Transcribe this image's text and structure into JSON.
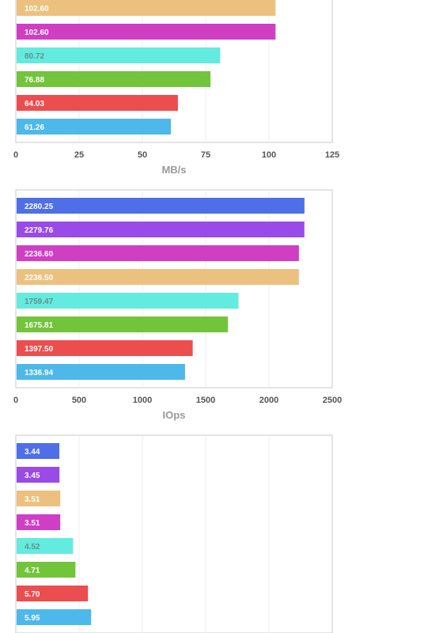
{
  "chart_data": [
    {
      "type": "bar",
      "orientation": "horizontal",
      "xlabel": "MB/s",
      "xlim": [
        0,
        125
      ],
      "xticks": [
        0,
        25,
        50,
        75,
        100,
        125
      ],
      "grid": true,
      "bars": [
        {
          "value": 102.6,
          "label": "102.60",
          "color": "#ecc17f"
        },
        {
          "value": 102.6,
          "label": "102.60",
          "color": "#d03ec4"
        },
        {
          "value": 80.72,
          "label": "80.72",
          "color": "#62ebde"
        },
        {
          "value": 76.88,
          "label": "76.88",
          "color": "#72c43b"
        },
        {
          "value": 64.03,
          "label": "64.03",
          "color": "#ec4d4f"
        },
        {
          "value": 61.26,
          "label": "61.26",
          "color": "#4db8ea"
        }
      ]
    },
    {
      "type": "bar",
      "orientation": "horizontal",
      "xlabel": "IOps",
      "xlim": [
        0,
        2500
      ],
      "xticks": [
        0,
        500,
        1000,
        1500,
        2000,
        2500
      ],
      "grid": true,
      "bars": [
        {
          "value": 2280.25,
          "label": "2280.25",
          "color": "#4f6fe8"
        },
        {
          "value": 2279.76,
          "label": "2279.76",
          "color": "#9a4ae6"
        },
        {
          "value": 2236.6,
          "label": "2236.60",
          "color": "#d03ec4"
        },
        {
          "value": 2236.5,
          "label": "2236.50",
          "color": "#ecc17f"
        },
        {
          "value": 1759.47,
          "label": "1759.47",
          "color": "#62ebde"
        },
        {
          "value": 1675.81,
          "label": "1675.81",
          "color": "#72c43b"
        },
        {
          "value": 1397.5,
          "label": "1397.50",
          "color": "#ec4d4f"
        },
        {
          "value": 1336.94,
          "label": "1336.94",
          "color": "#4db8ea"
        }
      ]
    },
    {
      "type": "bar",
      "orientation": "horizontal",
      "xlabel": "",
      "xlim": [
        0,
        25
      ],
      "grid": true,
      "bars": [
        {
          "value": 3.44,
          "label": "3.44",
          "color": "#4f6fe8"
        },
        {
          "value": 3.45,
          "label": "3.45",
          "color": "#9a4ae6"
        },
        {
          "value": 3.51,
          "label": "3.51",
          "color": "#ecc17f"
        },
        {
          "value": 3.51,
          "label": "3.51",
          "color": "#d03ec4"
        },
        {
          "value": 4.52,
          "label": "4.52",
          "color": "#62ebde"
        },
        {
          "value": 4.71,
          "label": "4.71",
          "color": "#72c43b"
        },
        {
          "value": 5.7,
          "label": "5.70",
          "color": "#ec4d4f"
        },
        {
          "value": 5.95,
          "label": "5.95",
          "color": "#4db8ea"
        }
      ]
    }
  ]
}
